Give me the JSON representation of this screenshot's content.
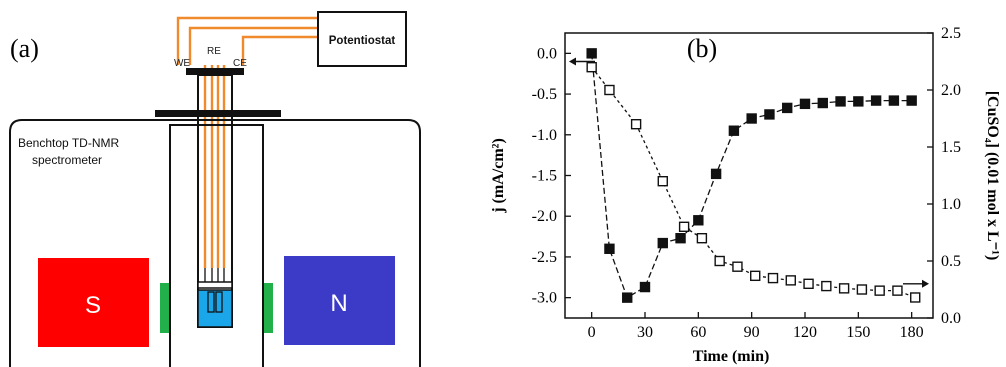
{
  "panel_a": {
    "label": "(a)",
    "potentiostat": "Potentiostat",
    "we": "WE",
    "re": "RE",
    "ce": "CE",
    "spectrometer_line1": "Benchtop TD-NMR",
    "spectrometer_line2": "spectrometer",
    "magnet_s": "S",
    "magnet_n": "N",
    "colors": {
      "wire": "#f08a2c",
      "magnet_s": "#ff0000",
      "magnet_n": "#3b3bc8",
      "shim": "#22b04a",
      "cell": "#1aa6e8"
    }
  },
  "panel_b": {
    "label": "(b)",
    "chart_data": {
      "type": "scatter",
      "xlabel": "Time (min)",
      "ylabel_left": "j (mA/cm²)",
      "ylabel_right": "[CuSO₄] (0.01 mol x L⁻¹)",
      "xlim": [
        -15,
        192
      ],
      "ylim_left": [
        -3.25,
        0.25
      ],
      "ylim_right": [
        0,
        2.5
      ],
      "x_ticks": [
        "0",
        "30",
        "60",
        "90",
        "120",
        "150",
        "180"
      ],
      "y_left_ticks": [
        "0.0",
        "-0.5",
        "-1.0",
        "-1.5",
        "-2.0",
        "-2.5",
        "-3.0"
      ],
      "y_right_ticks": [
        "0.0",
        "0.5",
        "1.0",
        "1.5",
        "2.0",
        "2.5"
      ],
      "series": [
        {
          "marker": "filled-square",
          "axis": "left",
          "x": [
            0,
            10,
            20,
            30,
            40,
            50,
            60,
            70,
            80,
            90,
            100,
            110,
            120,
            130,
            140,
            150,
            160,
            170,
            180
          ],
          "values": [
            0.0,
            -2.4,
            -3.0,
            -2.87,
            -2.33,
            -2.27,
            -2.05,
            -1.48,
            -0.95,
            -0.8,
            -0.75,
            -0.67,
            -0.62,
            -0.61,
            -0.59,
            -0.59,
            -0.58,
            -0.58,
            -0.58
          ]
        },
        {
          "marker": "open-square",
          "axis": "right",
          "x": [
            0,
            10,
            25,
            40,
            52,
            62,
            72,
            82,
            92,
            102,
            112,
            122,
            132,
            142,
            152,
            162,
            172,
            182
          ],
          "values": [
            2.2,
            2.0,
            1.7,
            1.2,
            0.8,
            0.7,
            0.5,
            0.45,
            0.37,
            0.35,
            0.33,
            0.3,
            0.28,
            0.26,
            0.25,
            0.24,
            0.24,
            0.18
          ]
        }
      ]
    }
  }
}
